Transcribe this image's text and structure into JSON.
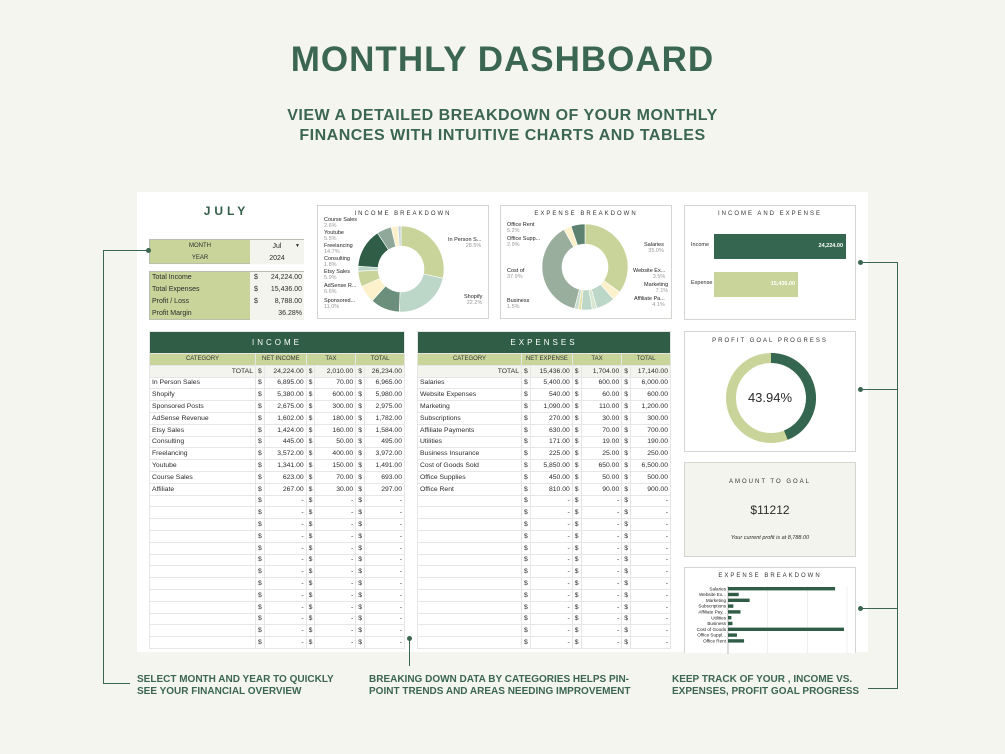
{
  "header": {
    "title": "MONTHLY DASHBOARD",
    "subtitle_line1": "VIEW A DETAILED BREAKDOWN OF YOUR MONTHLY",
    "subtitle_line2": "FINANCES WITH INTUITIVE CHARTS AND TABLES"
  },
  "selector": {
    "month_name": "JULY",
    "month_label": "MONTH",
    "month_value": "Jul",
    "year_label": "YEAR",
    "year_value": "2024"
  },
  "summary": [
    {
      "label": "Total Income",
      "currency": "$",
      "value": "24,224.00"
    },
    {
      "label": "Total Expenses",
      "currency": "$",
      "value": "15,436.00"
    },
    {
      "label": "Profit / Loss",
      "currency": "$",
      "value": "8,788.00"
    },
    {
      "label": "Profit Margin",
      "currency": "",
      "value": "36.28%"
    }
  ],
  "income_breakdown": {
    "title": "INCOME BREAKDOWN",
    "slices": [
      {
        "label": "In Person S...",
        "pct": "28.5%",
        "value": 6895,
        "color": "#c9d49a"
      },
      {
        "label": "Shopify",
        "pct": "22.2%",
        "value": 5380,
        "color": "#bcd6c8"
      },
      {
        "label": "Sponsored...",
        "pct": "11.0%",
        "value": 2675,
        "color": "#6b8f7a"
      },
      {
        "label": "AdSense R...",
        "pct": "6.6%",
        "value": 1602,
        "color": "#fcf1cb"
      },
      {
        "label": "Etsy Sales",
        "pct": "5.9%",
        "value": 1424,
        "color": "#c9d49a"
      },
      {
        "label": "Consulting",
        "pct": "1.8%",
        "value": 445,
        "color": "#bcd6c8"
      },
      {
        "label": "Freelancing",
        "pct": "14.7%",
        "value": 3572,
        "color": "#2f5d46"
      },
      {
        "label": "Youtube",
        "pct": "5.5%",
        "value": 1341,
        "color": "#8fa89a"
      },
      {
        "label": "Course Sales",
        "pct": "2.6%",
        "value": 623,
        "color": "#fcf1cb"
      },
      {
        "label": "Affiliate",
        "pct": "1.1%",
        "value": 267,
        "color": "#c4d4dc"
      }
    ]
  },
  "expense_breakdown": {
    "title": "EXPENSE BREAKDOWN",
    "slices": [
      {
        "label": "Salaries",
        "pct": "35.0%",
        "value": 5400,
        "color": "#c9d49a"
      },
      {
        "label": "Website Ex...",
        "pct": "3.5%",
        "value": 540,
        "color": "#fcf1cb"
      },
      {
        "label": "Marketing",
        "pct": "7.1%",
        "value": 1090,
        "color": "#bcd6c8"
      },
      {
        "label": "Subscriptions",
        "pct": "1.7%",
        "value": 270,
        "color": "#d8e6d0"
      },
      {
        "label": "Affiliate Pa...",
        "pct": "4.1%",
        "value": 630,
        "color": "#bcd6c8"
      },
      {
        "label": "Utilities",
        "pct": "1.1%",
        "value": 171,
        "color": "#e6e0a0"
      },
      {
        "label": "Business",
        "pct": "1.5%",
        "value": 225,
        "color": "#c9dcd0"
      },
      {
        "label": "Cost of",
        "pct": "37.9%",
        "value": 5850,
        "color": "#9aae9e"
      },
      {
        "label": "Office Supp...",
        "pct": "2.9%",
        "value": 450,
        "color": "#fcf1cb"
      },
      {
        "label": "Office Rent",
        "pct": "5.2%",
        "value": 810,
        "color": "#5e8272"
      }
    ]
  },
  "income_expense": {
    "title": "INCOME AND EXPENSE",
    "bars": [
      {
        "label": "Income",
        "value": 24224,
        "display": "24,224.00",
        "color": "#356650"
      },
      {
        "label": "Expense",
        "value": 15436,
        "display": "15,436.00",
        "color": "#c9d49a"
      }
    ]
  },
  "profit_goal": {
    "title": "PROFIT GOAL PROGRESS",
    "percent_text": "43.94%",
    "fraction": 0.4394,
    "color": "#356650",
    "track": "#c9d49a"
  },
  "amount_to_goal": {
    "title": "AMOUNT TO GOAL",
    "amount": "$11212",
    "note": "Your current profit is at 8,788.00"
  },
  "expense_bars": {
    "title": "EXPENSE BREAKDOWN",
    "max": 6000,
    "items": [
      {
        "label": "Salaries",
        "value": 5400
      },
      {
        "label": "Website Ex...",
        "value": 540
      },
      {
        "label": "Marketing",
        "value": 1090
      },
      {
        "label": "Subscriptions",
        "value": 270
      },
      {
        "label": "Affiliate Pay...",
        "value": 630
      },
      {
        "label": "Utilities",
        "value": 171
      },
      {
        "label": "Business",
        "value": 225
      },
      {
        "label": "Cost of Goods",
        "value": 5850
      },
      {
        "label": "Office Suppl...",
        "value": 450
      },
      {
        "label": "Office Rent",
        "value": 810
      }
    ]
  },
  "income_table": {
    "title": "INCOME",
    "columns": [
      "CATEGORY",
      "NET INCOME",
      "TAX",
      "TOTAL"
    ],
    "total_label": "TOTAL",
    "currency": "$",
    "totals": [
      "24,224.00",
      "2,010.00",
      "26,234.00"
    ],
    "rows": [
      [
        "In Person Sales",
        "6,895.00",
        "70.00",
        "6,965.00"
      ],
      [
        "Shopify",
        "5,380.00",
        "600.00",
        "5,980.00"
      ],
      [
        "Sponsored Posts",
        "2,675.00",
        "300.00",
        "2,975.00"
      ],
      [
        "AdSense Revenue",
        "1,602.00",
        "180.00",
        "1,782.00"
      ],
      [
        "Etsy Sales",
        "1,424.00",
        "160.00",
        "1,584.00"
      ],
      [
        "Consulting",
        "445.00",
        "50.00",
        "495.00"
      ],
      [
        "Freelancing",
        "3,572.00",
        "400.00",
        "3,972.00"
      ],
      [
        "Youtube",
        "1,341.00",
        "150.00",
        "1,491.00"
      ],
      [
        "Course Sales",
        "623.00",
        "70.00",
        "693.00"
      ],
      [
        "Affiliate",
        "267.00",
        "30.00",
        "297.00"
      ]
    ]
  },
  "expense_table": {
    "title": "EXPENSES",
    "columns": [
      "CATEGORY",
      "NET EXPENSE",
      "TAX",
      "TOTAL"
    ],
    "total_label": "TOTAL",
    "currency": "$",
    "totals": [
      "15,436.00",
      "1,704.00",
      "17,140.00"
    ],
    "rows": [
      [
        "Salaries",
        "5,400.00",
        "600.00",
        "6,000.00"
      ],
      [
        "Website Expenses",
        "540.00",
        "60.00",
        "600.00"
      ],
      [
        "Marketing",
        "1,090.00",
        "110.00",
        "1,200.00"
      ],
      [
        "Subscriptions",
        "270.00",
        "30.00",
        "300.00"
      ],
      [
        "Affiliate Payments",
        "630.00",
        "70.00",
        "700.00"
      ],
      [
        "Utilities",
        "171.00",
        "19.00",
        "190.00"
      ],
      [
        "Business Insurance",
        "225.00",
        "25.00",
        "250.00"
      ],
      [
        "Cost of Goods Sold",
        "5,850.00",
        "650.00",
        "6,500.00"
      ],
      [
        "Office Supplies",
        "450.00",
        "50.00",
        "500.00"
      ],
      [
        "Office Rent",
        "810.00",
        "90.00",
        "900.00"
      ]
    ]
  },
  "empty_cell": "-",
  "footer": {
    "left_line1": "SELECT MONTH AND YEAR TO QUICKLY",
    "left_line2": "SEE YOUR FINANCIAL OVERVIEW",
    "mid_line1": "BREAKING DOWN DATA BY CATEGORIES HELPS PIN-",
    "mid_line2": "POINT TRENDS AND AREAS NEEDING IMPROVEMENT",
    "right_line1": "KEEP TRACK OF YOUR , INCOME VS.",
    "right_line2": "EXPENSES, PROFIT GOAL PROGRESS"
  }
}
